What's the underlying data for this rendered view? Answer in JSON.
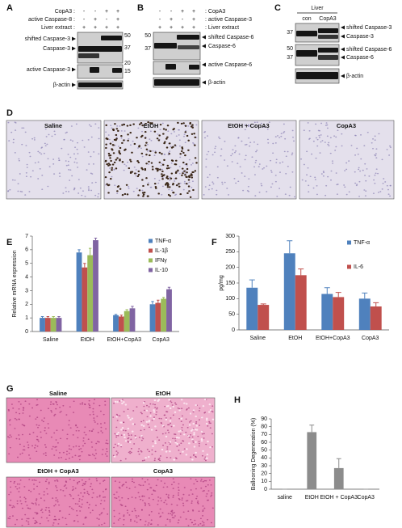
{
  "blots": [
    {
      "label": "A",
      "rows": [
        {
          "name": "CopA3 :",
          "signs": [
            "-",
            "-",
            "+",
            "+"
          ]
        },
        {
          "name": "active Caspase-8 :",
          "signs": [
            "-",
            "+",
            "-",
            "+"
          ]
        },
        {
          "name": "Liver extract :",
          "signs": [
            "+",
            "+",
            "+",
            "+"
          ]
        }
      ],
      "bands": [
        "shifted Caspase-3",
        "Caspase-3",
        "active Caspase-3",
        "β-actin"
      ],
      "markers": [
        50,
        37,
        20,
        15
      ]
    },
    {
      "label": "B",
      "rows": [
        {
          "name": ": CopA3",
          "signs": [
            "-",
            "-",
            "+",
            "+"
          ]
        },
        {
          "name": ": active Caspase-3",
          "signs": [
            "-",
            "+",
            "-",
            "+"
          ]
        },
        {
          "name": ": Liver extract",
          "signs": [
            "+",
            "+",
            "+",
            "+"
          ]
        }
      ],
      "bands": [
        "shifted Caspase-6",
        "Caspase-6",
        "active Caspase-6",
        "β-actin"
      ],
      "markers": [
        50,
        37
      ]
    },
    {
      "label": "C",
      "title": "Liver",
      "lanes": [
        "con",
        "CopA3"
      ],
      "bands": [
        "shifted Caspase-3",
        "Caspase-3",
        "shifted Caspase-6",
        "Caspase-6",
        "β-actin"
      ],
      "markers": [
        37,
        50,
        37
      ]
    }
  ],
  "histology": [
    {
      "label": "D",
      "images": [
        "Saline",
        "EtOH",
        "EtOH + CopA3",
        "CopA3"
      ]
    },
    {
      "label": "G",
      "images": [
        "Saline",
        "EtOH",
        "EtOH + CopA3",
        "CopA3"
      ]
    }
  ],
  "chart_data": [
    {
      "type": "bar",
      "label": "E",
      "y_label": "Relative mRNA expression",
      "categories": [
        "Saline",
        "EtOH",
        "EtOH+CopA3",
        "CopA3"
      ],
      "series": [
        {
          "name": "TNF-α",
          "color": "#4f81bd",
          "values": [
            1.0,
            5.8,
            1.2,
            2.0
          ],
          "errors": [
            0.1,
            0.2,
            0.05,
            0.2
          ]
        },
        {
          "name": "IL-1β",
          "color": "#c0504d",
          "values": [
            1.0,
            4.7,
            1.1,
            2.1
          ],
          "errors": [
            0.1,
            0.3,
            0.1,
            0.2
          ]
        },
        {
          "name": "IFNγ",
          "color": "#9bbb59",
          "values": [
            1.0,
            5.6,
            1.5,
            2.4
          ],
          "errors": [
            0.1,
            0.5,
            0.1,
            0.1
          ]
        },
        {
          "name": "IL-10",
          "color": "#8064a2",
          "values": [
            1.0,
            6.7,
            1.7,
            3.1
          ],
          "errors": [
            0.1,
            0.15,
            0.15,
            0.15
          ]
        }
      ],
      "ylim": [
        0,
        7
      ],
      "yticks": [
        0,
        1,
        2,
        3,
        4,
        5,
        6,
        7
      ]
    },
    {
      "type": "bar",
      "label": "F",
      "y_label": "pg/mg",
      "categories": [
        "Saline",
        "EtOH",
        "EtOH+CopA3",
        "CopA3"
      ],
      "series": [
        {
          "name": "TNF-α",
          "color": "#4f81bd",
          "values": [
            135,
            245,
            115,
            100
          ],
          "errors": [
            25,
            40,
            20,
            18
          ]
        },
        {
          "name": "IL-6",
          "color": "#c0504d",
          "values": [
            80,
            175,
            105,
            75
          ],
          "errors": [
            3,
            20,
            15,
            12
          ]
        }
      ],
      "ylim": [
        0,
        300
      ],
      "yticks": [
        0,
        50,
        100,
        150,
        200,
        250,
        300
      ]
    },
    {
      "type": "bar",
      "label": "H",
      "y_label": "Ballooning Degeneration (%)",
      "categories": [
        "saline",
        "EtOH",
        "EtOH + CopA3",
        "CopA3"
      ],
      "values": [
        0,
        73,
        27,
        0
      ],
      "errors": [
        0,
        9,
        12,
        0
      ],
      "color": "#8c8c8c",
      "ylim": [
        0,
        90
      ],
      "yticks": [
        0,
        10,
        20,
        30,
        40,
        50,
        60,
        70,
        80,
        90
      ]
    }
  ]
}
